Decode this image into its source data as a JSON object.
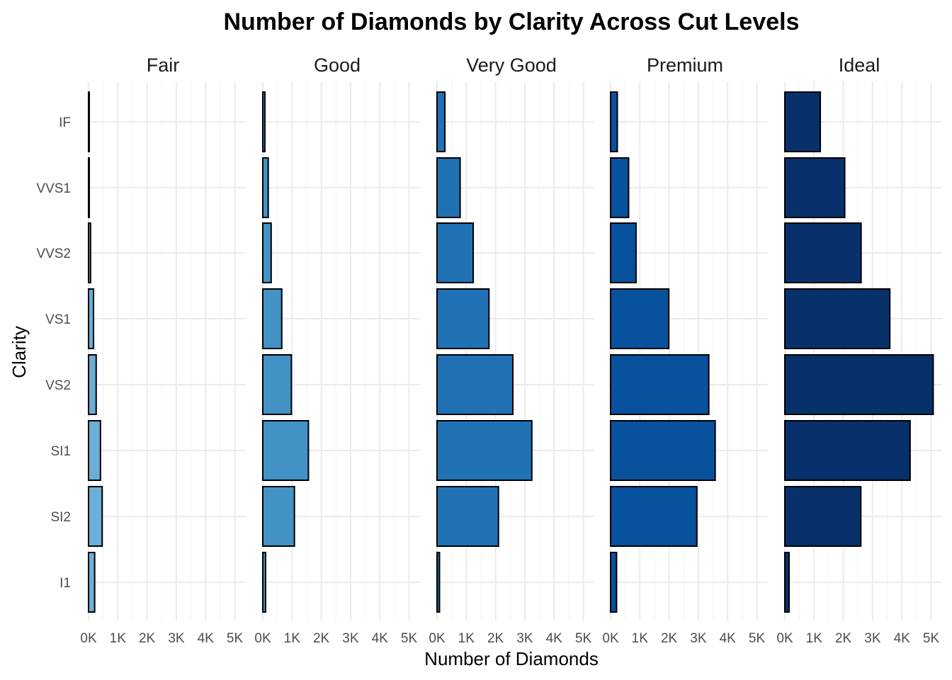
{
  "chart_data": {
    "type": "bar",
    "orientation": "horizontal",
    "title": "Number of Diamonds by Clarity Across Cut Levels",
    "xlabel": "Number of Diamonds",
    "ylabel": "Clarity",
    "xlim": [
      0,
      5200
    ],
    "x_ticks": [
      0,
      1000,
      2000,
      3000,
      4000,
      5000
    ],
    "x_tick_labels": [
      "0K",
      "1K",
      "2K",
      "3K",
      "4K",
      "5K"
    ],
    "categories": [
      "IF",
      "VVS1",
      "VVS2",
      "VS1",
      "VS2",
      "SI1",
      "SI2",
      "I1"
    ],
    "facets": [
      "Fair",
      "Good",
      "Very Good",
      "Premium",
      "Ideal"
    ],
    "grid": true,
    "legend": "none",
    "series": [
      {
        "name": "Fair",
        "color": "#6baed6",
        "values": [
          9,
          17,
          69,
          170,
          261,
          408,
          466,
          210
        ]
      },
      {
        "name": "Good",
        "color": "#4292c6",
        "values": [
          71,
          186,
          286,
          648,
          978,
          1560,
          1081,
          96
        ]
      },
      {
        "name": "Very Good",
        "color": "#2171b5",
        "values": [
          268,
          789,
          1235,
          1775,
          2591,
          3240,
          2100,
          84
        ]
      },
      {
        "name": "Premium",
        "color": "#08519c",
        "values": [
          230,
          616,
          870,
          1989,
          3357,
          3575,
          2949,
          205
        ]
      },
      {
        "name": "Ideal",
        "color": "#08306b",
        "values": [
          1212,
          2047,
          2606,
          3589,
          5071,
          4282,
          2598,
          146
        ]
      }
    ]
  }
}
